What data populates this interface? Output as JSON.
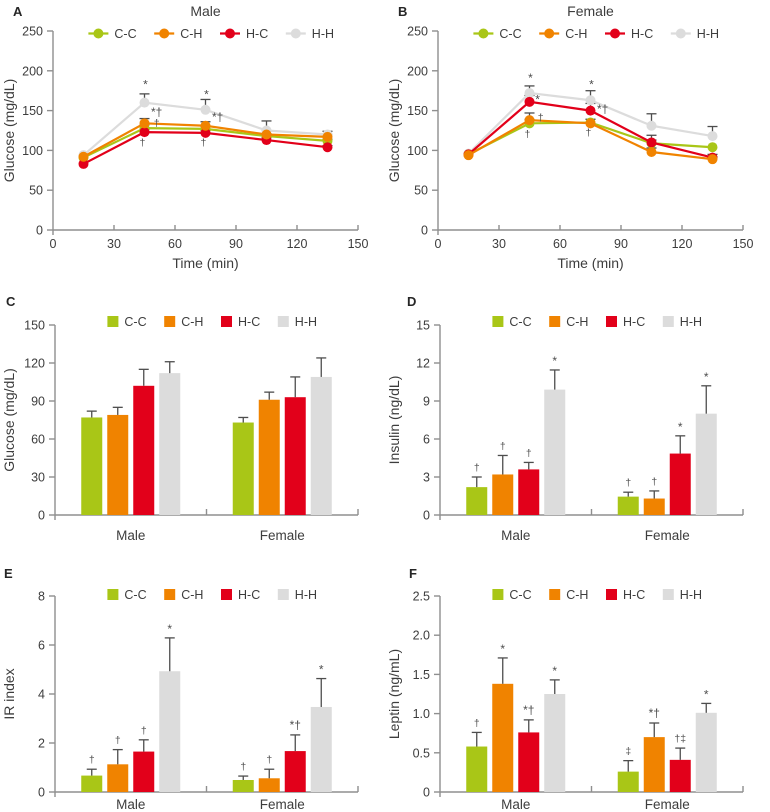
{
  "colors": {
    "axis": "#8f8f8f",
    "tick_text": "#3d3d3d",
    "title_text": "#3d3d3d",
    "error_bar": "#4d4d4d",
    "annotation": "#4d4d4d",
    "background": "#ffffff"
  },
  "chart_data": [
    {
      "panel_label": "A",
      "type": "line",
      "title": "Male",
      "xlabel": "Time (min)",
      "ylabel": "Glucose (mg/dL)",
      "xlim": [
        0,
        150
      ],
      "ylim": [
        0,
        250
      ],
      "xticks": [
        0,
        30,
        60,
        90,
        120,
        150
      ],
      "yticks": [
        0,
        50,
        100,
        150,
        200,
        250
      ],
      "x": [
        15,
        45,
        75,
        105,
        135
      ],
      "legend_position": "top",
      "series": [
        {
          "name": "C-C",
          "color": "#a9c617",
          "values": [
            91,
            128,
            127,
            118,
            112
          ],
          "errors": [
            0,
            4,
            3,
            3,
            2
          ]
        },
        {
          "name": "C-H",
          "color": "#f08300",
          "values": [
            92,
            134,
            131,
            120,
            117
          ],
          "errors": [
            0,
            6,
            5,
            5,
            3
          ]
        },
        {
          "name": "H-C",
          "color": "#e2001a",
          "values": [
            83,
            123,
            122,
            113,
            104
          ],
          "errors": [
            0,
            3,
            3,
            3,
            2
          ]
        },
        {
          "name": "H-H",
          "color": "#dcdcdc",
          "values": [
            94,
            160,
            151,
            125,
            120
          ],
          "errors": [
            0,
            11,
            13,
            12,
            4
          ]
        }
      ],
      "annotations": [
        {
          "text": "*",
          "x": 45.5,
          "y": 183
        },
        {
          "text": "*†",
          "x": 51,
          "y": 147
        },
        {
          "text": "†",
          "x": 51,
          "y": 134
        },
        {
          "text": "†",
          "x": 44,
          "y": 109
        },
        {
          "text": "*",
          "x": 75.5,
          "y": 170
        },
        {
          "text": "*†",
          "x": 81,
          "y": 141
        },
        {
          "text": "†",
          "x": 74,
          "y": 109
        }
      ]
    },
    {
      "panel_label": "B",
      "type": "line",
      "title": "Female",
      "xlabel": "Time (min)",
      "ylabel": "Glucose (mg/dL)",
      "xlim": [
        0,
        150
      ],
      "ylim": [
        0,
        250
      ],
      "xticks": [
        0,
        30,
        60,
        90,
        120,
        150
      ],
      "yticks": [
        0,
        50,
        100,
        150,
        200,
        250
      ],
      "x": [
        15,
        45,
        75,
        105,
        135
      ],
      "legend_position": "top",
      "series": [
        {
          "name": "C-C",
          "color": "#a9c617",
          "values": [
            95,
            134,
            135,
            109,
            104
          ],
          "errors": [
            0,
            5,
            4,
            4,
            0
          ]
        },
        {
          "name": "C-H",
          "color": "#f08300",
          "values": [
            94,
            138,
            134,
            98,
            89
          ],
          "errors": [
            0,
            9,
            5,
            5,
            3
          ]
        },
        {
          "name": "H-C",
          "color": "#e2001a",
          "values": [
            95,
            161,
            150,
            110,
            91
          ],
          "errors": [
            0,
            8,
            9,
            9,
            4
          ]
        },
        {
          "name": "H-H",
          "color": "#dcdcdc",
          "values": [
            96,
            172,
            163,
            131,
            118
          ],
          "errors": [
            0,
            9,
            12,
            15,
            12
          ]
        }
      ],
      "annotations": [
        {
          "text": "*",
          "x": 45.5,
          "y": 191
        },
        {
          "text": "*",
          "x": 49,
          "y": 164
        },
        {
          "text": "†",
          "x": 50.5,
          "y": 141
        },
        {
          "text": "†",
          "x": 44,
          "y": 120
        },
        {
          "text": "*",
          "x": 75.5,
          "y": 183
        },
        {
          "text": "*†",
          "x": 81,
          "y": 151
        },
        {
          "text": "†",
          "x": 74,
          "y": 122
        }
      ]
    },
    {
      "panel_label": "C",
      "type": "bar",
      "title": "",
      "ylabel": "Glucose (mg/dL)",
      "ylim": [
        0,
        150
      ],
      "yticks": [
        0,
        30,
        60,
        90,
        120,
        150
      ],
      "categories": [
        "Male",
        "Female"
      ],
      "legend_position": "top",
      "series": [
        {
          "name": "C-C",
          "color": "#a9c617",
          "values": [
            77,
            73
          ],
          "errors": [
            5,
            4
          ],
          "markers": [
            "",
            ""
          ]
        },
        {
          "name": "C-H",
          "color": "#f08300",
          "values": [
            79,
            91
          ],
          "errors": [
            6,
            6
          ],
          "markers": [
            "",
            ""
          ]
        },
        {
          "name": "H-C",
          "color": "#e2001a",
          "values": [
            102,
            93
          ],
          "errors": [
            13,
            16
          ],
          "markers": [
            "",
            ""
          ]
        },
        {
          "name": "H-H",
          "color": "#dcdcdc",
          "values": [
            112,
            109
          ],
          "errors": [
            9,
            15
          ],
          "markers": [
            "",
            ""
          ]
        }
      ]
    },
    {
      "panel_label": "D",
      "type": "bar",
      "title": "",
      "ylabel": "Insulin (ng/dL)",
      "ylim": [
        0,
        15
      ],
      "yticks": [
        0,
        3,
        6,
        9,
        12,
        15
      ],
      "categories": [
        "Male",
        "Female"
      ],
      "legend_position": "top",
      "series": [
        {
          "name": "C-C",
          "color": "#a9c617",
          "values": [
            2.2,
            1.45
          ],
          "errors": [
            0.8,
            0.35
          ],
          "markers": [
            "†",
            "†"
          ]
        },
        {
          "name": "C-H",
          "color": "#f08300",
          "values": [
            3.2,
            1.3
          ],
          "errors": [
            1.5,
            0.6
          ],
          "markers": [
            "†",
            "†"
          ]
        },
        {
          "name": "H-C",
          "color": "#e2001a",
          "values": [
            3.6,
            4.85
          ],
          "errors": [
            0.55,
            1.4
          ],
          "markers": [
            "†",
            "*"
          ]
        },
        {
          "name": "H-H",
          "color": "#dcdcdc",
          "values": [
            9.9,
            8.0
          ],
          "errors": [
            1.55,
            2.2
          ],
          "markers": [
            "*",
            "*"
          ]
        }
      ]
    },
    {
      "panel_label": "E",
      "type": "bar",
      "title": "",
      "ylabel": "IR index",
      "ylim": [
        0,
        8
      ],
      "yticks": [
        0,
        2,
        4,
        6,
        8
      ],
      "categories": [
        "Male",
        "Female"
      ],
      "legend_position": "top",
      "series": [
        {
          "name": "C-C",
          "color": "#a9c617",
          "values": [
            0.67,
            0.49
          ],
          "errors": [
            0.26,
            0.16
          ],
          "markers": [
            "†",
            "†"
          ]
        },
        {
          "name": "C-H",
          "color": "#f08300",
          "values": [
            1.13,
            0.56
          ],
          "errors": [
            0.6,
            0.37
          ],
          "markers": [
            "†",
            "†"
          ]
        },
        {
          "name": "H-C",
          "color": "#e2001a",
          "values": [
            1.65,
            1.67
          ],
          "errors": [
            0.48,
            0.66
          ],
          "markers": [
            "†",
            "*†"
          ]
        },
        {
          "name": "H-H",
          "color": "#dcdcdc",
          "values": [
            4.93,
            3.47
          ],
          "errors": [
            1.36,
            1.16
          ],
          "markers": [
            "*",
            "*"
          ]
        }
      ]
    },
    {
      "panel_label": "F",
      "type": "bar",
      "title": "",
      "ylabel": "Leptin (ng/mL)",
      "ylim": [
        0,
        2.5
      ],
      "yticks": [
        0,
        0.5,
        1,
        1.5,
        2,
        2.5
      ],
      "ytick_labels": [
        "0",
        "0.5",
        "1.0",
        "1.5",
        "2.0",
        "2.5"
      ],
      "categories": [
        "Male",
        "Female"
      ],
      "legend_position": "top",
      "series": [
        {
          "name": "C-C",
          "color": "#a9c617",
          "values": [
            0.58,
            0.26
          ],
          "errors": [
            0.18,
            0.14
          ],
          "markers": [
            "†",
            "‡"
          ]
        },
        {
          "name": "C-H",
          "color": "#f08300",
          "values": [
            1.38,
            0.7
          ],
          "errors": [
            0.33,
            0.18
          ],
          "markers": [
            "*",
            "*†"
          ]
        },
        {
          "name": "H-C",
          "color": "#e2001a",
          "values": [
            0.76,
            0.41
          ],
          "errors": [
            0.16,
            0.15
          ],
          "markers": [
            "*†",
            "†‡"
          ]
        },
        {
          "name": "H-H",
          "color": "#dcdcdc",
          "values": [
            1.25,
            1.01
          ],
          "errors": [
            0.18,
            0.12
          ],
          "markers": [
            "*",
            "*"
          ]
        }
      ]
    }
  ]
}
